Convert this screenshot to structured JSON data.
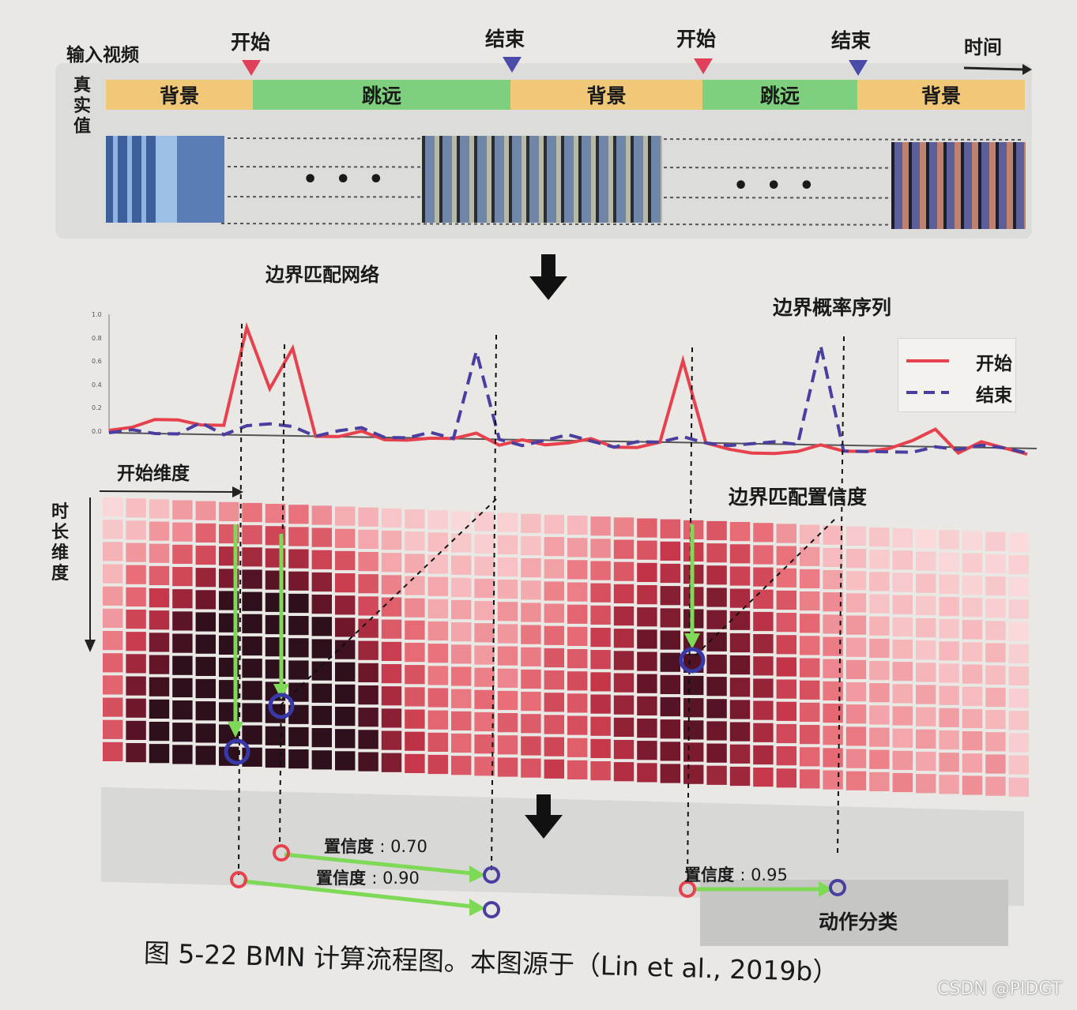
{
  "header": {
    "input_label": "输入视频",
    "time_label": "时间",
    "gt_label": [
      "真",
      "实",
      "值"
    ]
  },
  "markers": [
    {
      "label": "开始",
      "kind": "start"
    },
    {
      "label": "结束",
      "kind": "end"
    },
    {
      "label": "开始",
      "kind": "start"
    },
    {
      "label": "结束",
      "kind": "end"
    }
  ],
  "segments": [
    {
      "label": "背景",
      "kind": "background"
    },
    {
      "label": "跳远",
      "kind": "action"
    },
    {
      "label": "背景",
      "kind": "background"
    },
    {
      "label": "跳远",
      "kind": "action"
    },
    {
      "label": "背景",
      "kind": "background"
    }
  ],
  "ellipsis": "• • •",
  "network_label": "边界匹配网络",
  "prob_title": "边界概率序列",
  "legend": {
    "start": "开始",
    "end": "结束"
  },
  "y_ticks": [
    "1.0",
    "0.8",
    "0.6",
    "0.4",
    "0.2",
    "0.0"
  ],
  "start_dim_label": "开始维度",
  "duration_dim_label": [
    "时",
    "长",
    "维",
    "度"
  ],
  "confidence_map_title": "边界匹配置信度",
  "proposals": [
    {
      "label": "置信度",
      "value": ": 0.70"
    },
    {
      "label": "置信度",
      "value": ": 0.90"
    },
    {
      "label": "置信度",
      "value": ": 0.95"
    }
  ],
  "action_classification": "动作分类",
  "caption": "图 5-22   BMN 计算流程图。本图源于（Lin et al., 2019b）",
  "watermark": "CSDN @PIDGT",
  "colors": {
    "start_curve": "#e8414e",
    "end_curve": "#4a3fa0",
    "background_segment": "#f0c878",
    "action_segment": "#7ed07e",
    "arrow_green": "#7ed957",
    "heat_high": "#2e0f1c",
    "heat_low": "#fbe8e8"
  },
  "chart_data": {
    "type": "line",
    "y_ticks": [
      0.0,
      0.2,
      0.4,
      0.6,
      0.8,
      1.0
    ],
    "ylim": [
      0,
      1.0
    ],
    "series": [
      {
        "name": "开始",
        "values": [
          0.02,
          0.05,
          0.12,
          0.12,
          0.08,
          0.08,
          0.92,
          0.4,
          0.75,
          0.0,
          0.0,
          0.05,
          -0.02,
          -0.02,
          0.0,
          0.0,
          0.05,
          -0.05,
          0.0,
          -0.04,
          -0.02,
          0.02,
          -0.05,
          -0.05,
          0.0,
          0.7,
          0.0,
          -0.05,
          -0.08,
          -0.08,
          -0.06,
          0.0,
          -0.05,
          -0.05,
          -0.02,
          0.05,
          0.15,
          -0.05,
          0.05,
          0.0,
          -0.05
        ]
      },
      {
        "name": "结束",
        "values": [
          0.0,
          0.03,
          0.0,
          0.0,
          0.1,
          0.0,
          0.08,
          0.1,
          0.08,
          0.0,
          0.05,
          0.08,
          0.0,
          0.0,
          0.05,
          0.0,
          0.75,
          0.0,
          -0.05,
          0.0,
          0.05,
          0.0,
          -0.05,
          0.0,
          0.0,
          0.05,
          0.0,
          -0.02,
          0.0,
          0.02,
          0.0,
          0.85,
          -0.05,
          -0.05,
          -0.05,
          -0.05,
          0.0,
          -0.02,
          0.02,
          0.0,
          -0.04
        ]
      }
    ]
  }
}
